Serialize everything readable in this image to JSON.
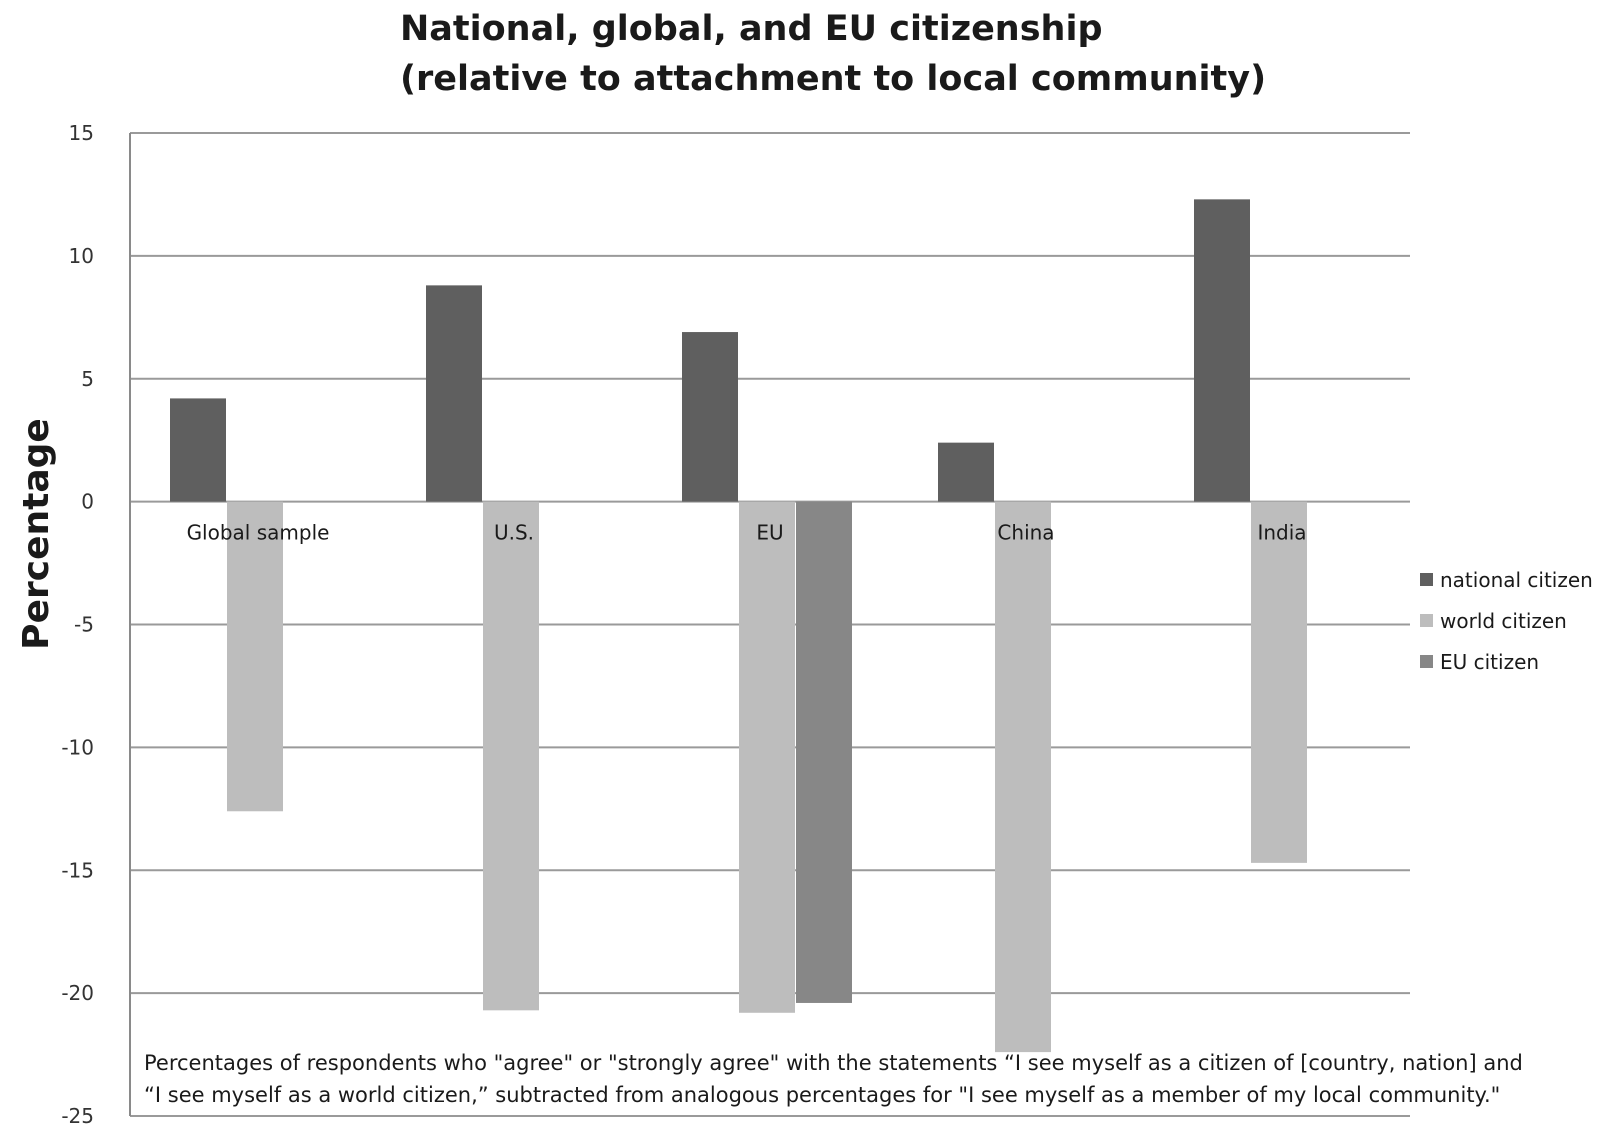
{
  "chart_data": {
    "type": "bar",
    "title": [
      "National, global, and EU citizenship",
      "(relative to attachment to local community)"
    ],
    "xlabel": "",
    "ylabel": "Percentage",
    "ylim": [
      -25,
      15
    ],
    "yticks": [
      15,
      10,
      5,
      0,
      -5,
      -10,
      -15,
      -20,
      -25
    ],
    "grid": true,
    "legend_position": "right",
    "categories": [
      "Global sample",
      "U.S.",
      "EU",
      "China",
      "India"
    ],
    "series": [
      {
        "name": "national citizen",
        "color": "#5f5f5f",
        "values": [
          4.2,
          8.8,
          6.9,
          2.4,
          12.3
        ]
      },
      {
        "name": "world citizen",
        "color": "#bdbdbd",
        "values": [
          -12.6,
          -20.7,
          -20.8,
          -22.4,
          -14.7
        ]
      },
      {
        "name": "EU citizen",
        "color": "#878787",
        "values": [
          null,
          null,
          -20.4,
          null,
          null
        ]
      }
    ],
    "note": [
      "Percentages  of respondents who \"agree\" or \"strongly agree\" with the statements “I see myself as a citizen of [country, nation] and",
      "“I see myself as a world citizen,” subtracted from analogous percentages for \"I see myself as a member of my local community.\""
    ]
  }
}
